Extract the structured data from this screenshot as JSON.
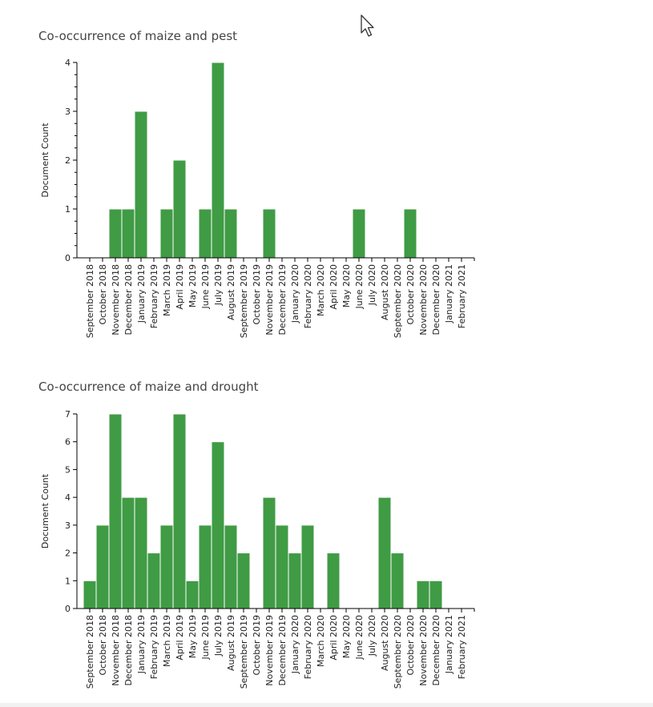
{
  "colors": {
    "bar": "#409b45",
    "bar_edge": "#ffffff",
    "axis": "#000000",
    "title": "#444444"
  },
  "cursor_icon": "arrow-cursor-icon",
  "chart_data": [
    {
      "type": "bar",
      "title": "Co-occurrence of maize and pest",
      "xlabel": "",
      "ylabel": "Document Count",
      "ylim": [
        0,
        4
      ],
      "yticks": [
        0,
        1,
        2,
        3,
        4
      ],
      "grid": false,
      "categories": [
        "September 2018",
        "October 2018",
        "November 2018",
        "December 2018",
        "January 2019",
        "February 2019",
        "March 2019",
        "April 2019",
        "May 2019",
        "June 2019",
        "July 2019",
        "August 2019",
        "September 2019",
        "October 2019",
        "November 2019",
        "December 2019",
        "January 2020",
        "February 2020",
        "March 2020",
        "April 2020",
        "May 2020",
        "June 2020",
        "July 2020",
        "August 2020",
        "September 2020",
        "October 2020",
        "November 2020",
        "December 2020",
        "January 2021",
        "February 2021"
      ],
      "values": [
        0,
        0,
        1,
        1,
        3,
        0,
        1,
        2,
        0,
        1,
        4,
        1,
        0,
        0,
        1,
        0,
        0,
        0,
        0,
        0,
        0,
        1,
        0,
        0,
        0,
        1,
        0,
        0,
        0,
        0
      ]
    },
    {
      "type": "bar",
      "title": "Co-occurrence of maize and drought",
      "xlabel": "",
      "ylabel": "Document Count",
      "ylim": [
        0,
        7
      ],
      "yticks": [
        0,
        1,
        2,
        3,
        4,
        5,
        6,
        7
      ],
      "grid": false,
      "categories": [
        "September 2018",
        "October 2018",
        "November 2018",
        "December 2018",
        "January 2019",
        "February 2019",
        "March 2019",
        "April 2019",
        "May 2019",
        "June 2019",
        "July 2019",
        "August 2019",
        "September 2019",
        "October 2019",
        "November 2019",
        "December 2019",
        "January 2020",
        "February 2020",
        "March 2020",
        "April 2020",
        "May 2020",
        "June 2020",
        "July 2020",
        "August 2020",
        "September 2020",
        "October 2020",
        "November 2020",
        "December 2020",
        "January 2021",
        "February 2021"
      ],
      "values": [
        1,
        3,
        7,
        4,
        4,
        2,
        3,
        7,
        1,
        3,
        6,
        3,
        2,
        0,
        4,
        3,
        2,
        3,
        0,
        2,
        0,
        0,
        0,
        4,
        2,
        0,
        1,
        1,
        0,
        0
      ]
    }
  ]
}
